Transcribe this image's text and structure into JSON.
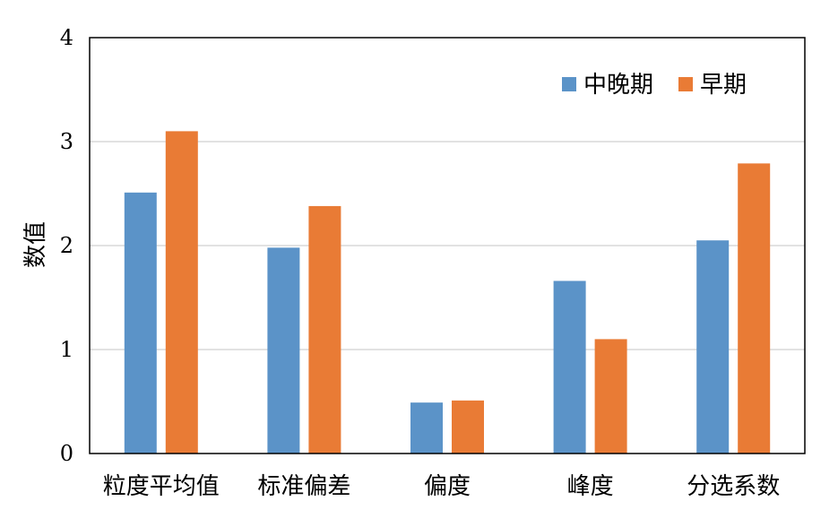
{
  "chart_data": {
    "type": "bar",
    "categories": [
      "粒度平均值",
      "标准偏差",
      "偏度",
      "峰度",
      "分选系数"
    ],
    "series": [
      {
        "name": "中晚期",
        "values": [
          2.51,
          1.98,
          0.49,
          1.66,
          2.05
        ],
        "color": "#5B93C8"
      },
      {
        "name": "早期",
        "values": [
          3.1,
          2.38,
          0.51,
          1.1,
          2.79
        ],
        "color": "#E97B35"
      }
    ],
    "ylabel": "数值",
    "ylim": [
      0,
      4
    ],
    "yticks": [
      0,
      1,
      2,
      3,
      4
    ],
    "grid": true,
    "legend_position": "top-right"
  }
}
